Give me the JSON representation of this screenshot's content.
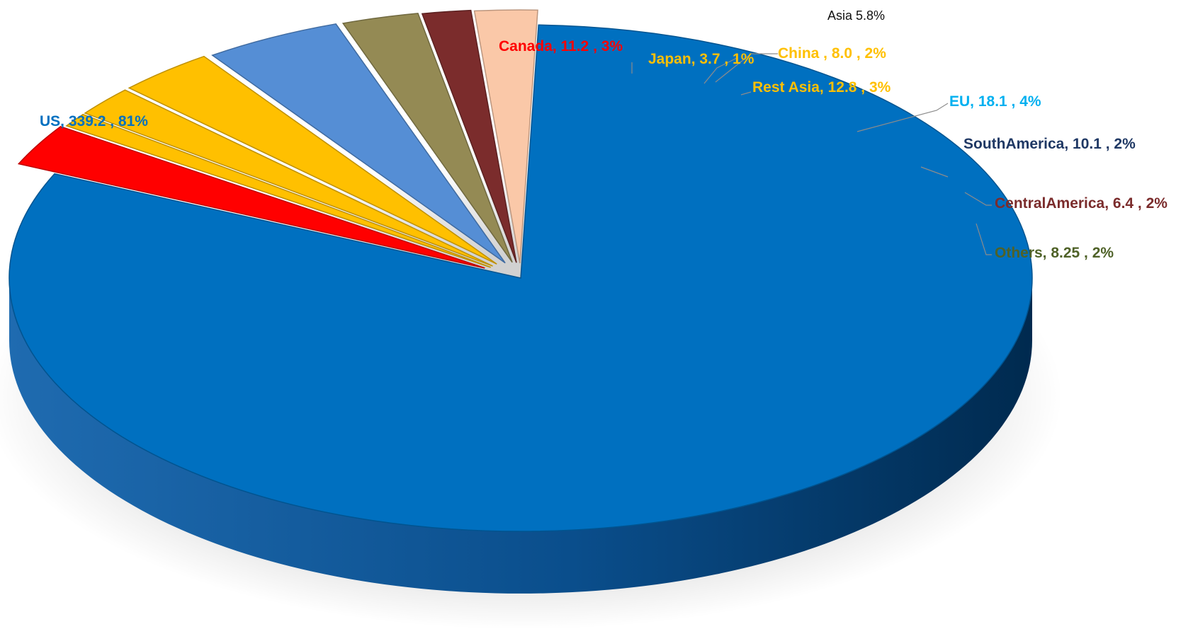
{
  "chart_data": {
    "type": "pie",
    "style": "3d-exploded",
    "title": "",
    "annotation": "Asia 5.8%",
    "slices": [
      {
        "name": "US",
        "value": 339.2,
        "percent": "81%",
        "label": "US, 339.2 , 81%",
        "color": "#0070C0",
        "label_color": "#0070C0"
      },
      {
        "name": "Canada",
        "value": 11.2,
        "percent": "3%",
        "label": "Canada, 11.2 , 3%",
        "color": "#FF0000",
        "label_color": "#FF0000"
      },
      {
        "name": "Japan",
        "value": 3.7,
        "percent": "1%",
        "label": "Japan, 3.7 , 1%",
        "color": "#FFC000",
        "label_color": "#FFC000"
      },
      {
        "name": "China",
        "value": 8.0,
        "percent": "2%",
        "label": "China , 8.0 , 2%",
        "color": "#FFC000",
        "label_color": "#FFC000"
      },
      {
        "name": "Rest Asia",
        "value": 12.8,
        "percent": "3%",
        "label": "Rest Asia,  12.8 , 3%",
        "color": "#FFC000",
        "label_color": "#FFC000"
      },
      {
        "name": "EU",
        "value": 18.1,
        "percent": "4%",
        "label": "EU,  18.1 , 4%",
        "color": "#558ED5",
        "label_color": "#00B0F0"
      },
      {
        "name": "SouthAmerica",
        "value": 10.1,
        "percent": "2%",
        "label": "SouthAmerica,  10.1 , 2%",
        "color": "#948A54",
        "label_color": "#1F3864"
      },
      {
        "name": "CentralAmerica",
        "value": 6.4,
        "percent": "2%",
        "label": "CentralAmerica,  6.4 , 2%",
        "color": "#7B2C2C",
        "label_color": "#7B2C2C"
      },
      {
        "name": "Others",
        "value": 8.25,
        "percent": "2%",
        "label": "Others,  8.25 , 2%",
        "color": "#FAC8A8",
        "label_color": "#4F6228"
      }
    ]
  }
}
